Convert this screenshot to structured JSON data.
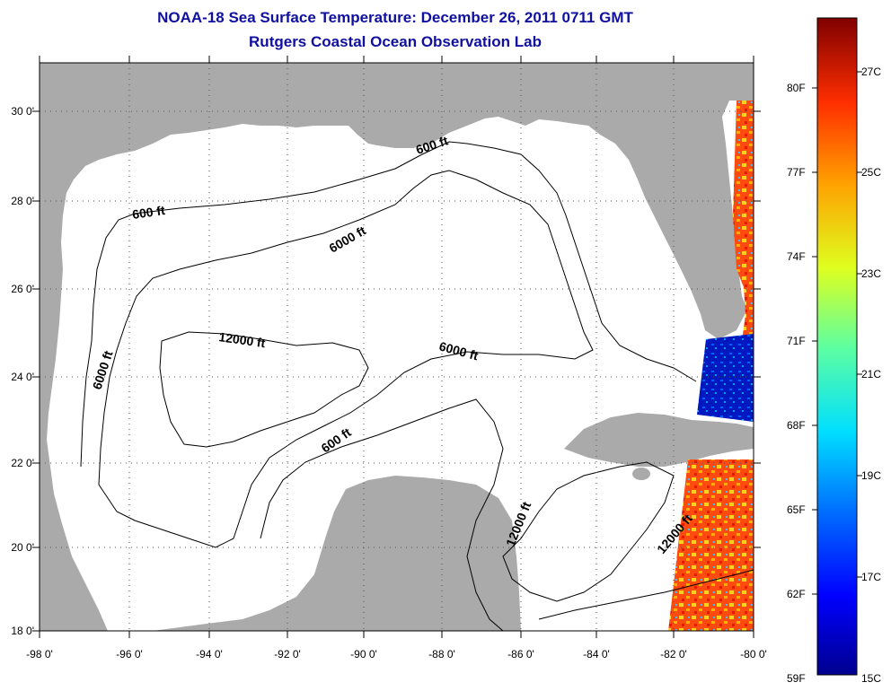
{
  "title_line1": "NOAA-18 Sea Surface Temperature:  December 26, 2011 0711 GMT",
  "title_line2": "Rutgers Coastal Ocean Observation Lab",
  "lon_ticks": [
    "-98 0'",
    "-96 0'",
    "-94 0'",
    "-92 0'",
    "-90 0'",
    "-88 0'",
    "-86 0'",
    "-84 0'",
    "-82 0'",
    "-80 0'"
  ],
  "lat_ticks": [
    "30 0'",
    "28 0'",
    "26 0'",
    "24 0'",
    "22 0'",
    "20 0'",
    "18 0'"
  ],
  "colorbar": {
    "fahrenheit": [
      "80F",
      "77F",
      "74F",
      "71F",
      "68F",
      "65F",
      "62F",
      "59F"
    ],
    "celsius": [
      "27C",
      "25C",
      "23C",
      "21C",
      "19C",
      "17C",
      "15C"
    ]
  },
  "contour_labels": {
    "a": "600 ft",
    "b": "600 ft",
    "c": "6000 ft",
    "d": "12000 ft",
    "e": "6000 ft",
    "f": "6000 ft",
    "g": "600 ft",
    "h": "12000 ft",
    "i": "12000 ft"
  },
  "colors": {
    "land": "#aaaaaa",
    "ocean": "#ffffff",
    "title": "#1010a0"
  }
}
